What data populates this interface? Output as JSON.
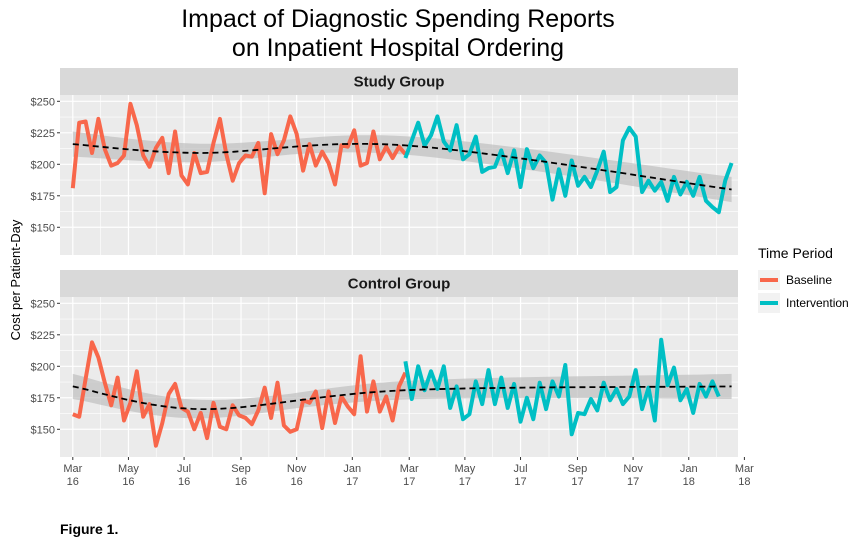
{
  "title_lines": [
    "Impact of Diagnostic Spending Reports",
    "on Inpatient Hospital Ordering"
  ],
  "caption": "Figure 1.",
  "colors": {
    "baseline": "#F8674B",
    "intervention": "#00BFC4",
    "panel_bg": "#EBEBEB",
    "strip_bg": "#D9D9D9",
    "grid": "#FFFFFF",
    "trend": "#000000",
    "ribbon": "#BFBFBF"
  },
  "chart_data": {
    "type": "line",
    "ylabel": "Cost per Patient-Day",
    "xlabel": "",
    "ylim": [
      128,
      255
    ],
    "y_ticks": [
      150,
      175,
      200,
      225,
      250
    ],
    "y_tick_labels": [
      "$150",
      "$175",
      "$200",
      "$225",
      "$250"
    ],
    "x_range_weeks": [
      -2,
      104
    ],
    "x_ticks": [
      {
        "week": 0,
        "label": [
          "Mar",
          "16"
        ]
      },
      {
        "week": 8.7,
        "label": [
          "May",
          "16"
        ]
      },
      {
        "week": 17.4,
        "label": [
          "Jul",
          "16"
        ]
      },
      {
        "week": 26.3,
        "label": [
          "Sep",
          "16"
        ]
      },
      {
        "week": 35,
        "label": [
          "Nov",
          "16"
        ]
      },
      {
        "week": 43.7,
        "label": [
          "Jan",
          "17"
        ]
      },
      {
        "week": 52.6,
        "label": [
          "Mar",
          "17"
        ]
      },
      {
        "week": 61.3,
        "label": [
          "May",
          "17"
        ]
      },
      {
        "week": 70,
        "label": [
          "Jul",
          "17"
        ]
      },
      {
        "week": 78.9,
        "label": [
          "Sep",
          "17"
        ]
      },
      {
        "week": 87.6,
        "label": [
          "Nov",
          "17"
        ]
      },
      {
        "week": 96.3,
        "label": [
          "Jan",
          "18"
        ]
      },
      {
        "week": 105,
        "label": [
          "Mar",
          "18"
        ]
      }
    ],
    "legend": {
      "title": "Time Period",
      "position": "right",
      "entries": [
        {
          "label": "Baseline",
          "color": "#F8674B"
        },
        {
          "label": "Intervention",
          "color": "#00BFC4"
        }
      ]
    },
    "grid": true,
    "intervention_start_week": 52,
    "panels": [
      {
        "strip": "Study Group",
        "series": [
          {
            "name": "Baseline",
            "color": "#F8674B",
            "start_week": 0,
            "values": [
              181,
              233,
              234,
              209,
              236,
              212,
              199,
              201,
              207,
              248,
              231,
              207,
              198,
              213,
              221,
              193,
              226,
              191,
              184,
              209,
              193,
              194,
              217,
              236,
              208,
              187,
              201,
              207,
              206,
              217,
              177,
              224,
              208,
              219,
              238,
              224,
              195,
              216,
              199,
              210,
              201,
              184,
              215,
              214,
              227,
              199,
              201,
              226,
              204,
              214,
              205,
              214,
              208
            ]
          },
          {
            "name": "Intervention",
            "color": "#00BFC4",
            "start_week": 52,
            "values": [
              205,
              219,
              233,
              215,
              223,
              238,
              218,
              211,
              231,
              204,
              208,
              222,
              194,
              197,
              198,
              211,
              193,
              211,
              182,
              212,
              197,
              207,
              201,
              172,
              196,
              175,
              203,
              183,
              190,
              182,
              195,
              210,
              178,
              182,
              219,
              229,
              222,
              178,
              187,
              179,
              186,
              171,
              190,
              176,
              186,
              175,
              190,
              171,
              166,
              162,
              187,
              201
            ]
          }
        ],
        "trend_start": [
          0,
          216
        ],
        "trend_end": [
          103,
          180
        ],
        "trend_mid_point": [
          20,
          209
        ],
        "trend_late_point": [
          52,
          215
        ]
      },
      {
        "strip": "Control Group",
        "series": [
          {
            "name": "Baseline",
            "color": "#F8674B",
            "start_week": 0,
            "values": [
              162,
              160,
              190,
              219,
              207,
              187,
              169,
              191,
              157,
              171,
              196,
              160,
              170,
              137,
              155,
              178,
              186,
              167,
              164,
              150,
              163,
              143,
              171,
              152,
              150,
              169,
              161,
              159,
              154,
              165,
              183,
              159,
              187,
              153,
              148,
              150,
              173,
              171,
              180,
              151,
              180,
              155,
              176,
              168,
              162,
              208,
              164,
              188,
              164,
              176,
              157,
              184,
              195
            ]
          },
          {
            "name": "Intervention",
            "color": "#00BFC4",
            "start_week": 52,
            "values": [
              204,
              174,
              200,
              181,
              196,
              182,
              200,
              167,
              184,
              158,
              162,
              188,
              170,
              197,
              170,
              191,
              167,
              186,
              156,
              175,
              158,
              187,
              166,
              188,
              176,
              201,
              146,
              163,
              162,
              174,
              165,
              187,
              173,
              182,
              170,
              176,
              197,
              166,
              183,
              157,
              221,
              185,
              199,
              173,
              182,
              163,
              186,
              176,
              188,
              176
            ]
          }
        ],
        "trend_start": [
          0,
          184
        ],
        "trend_end": [
          103,
          184
        ],
        "trend_mid_point": [
          20,
          166
        ],
        "trend_late_point": [
          52,
          181
        ]
      }
    ]
  }
}
